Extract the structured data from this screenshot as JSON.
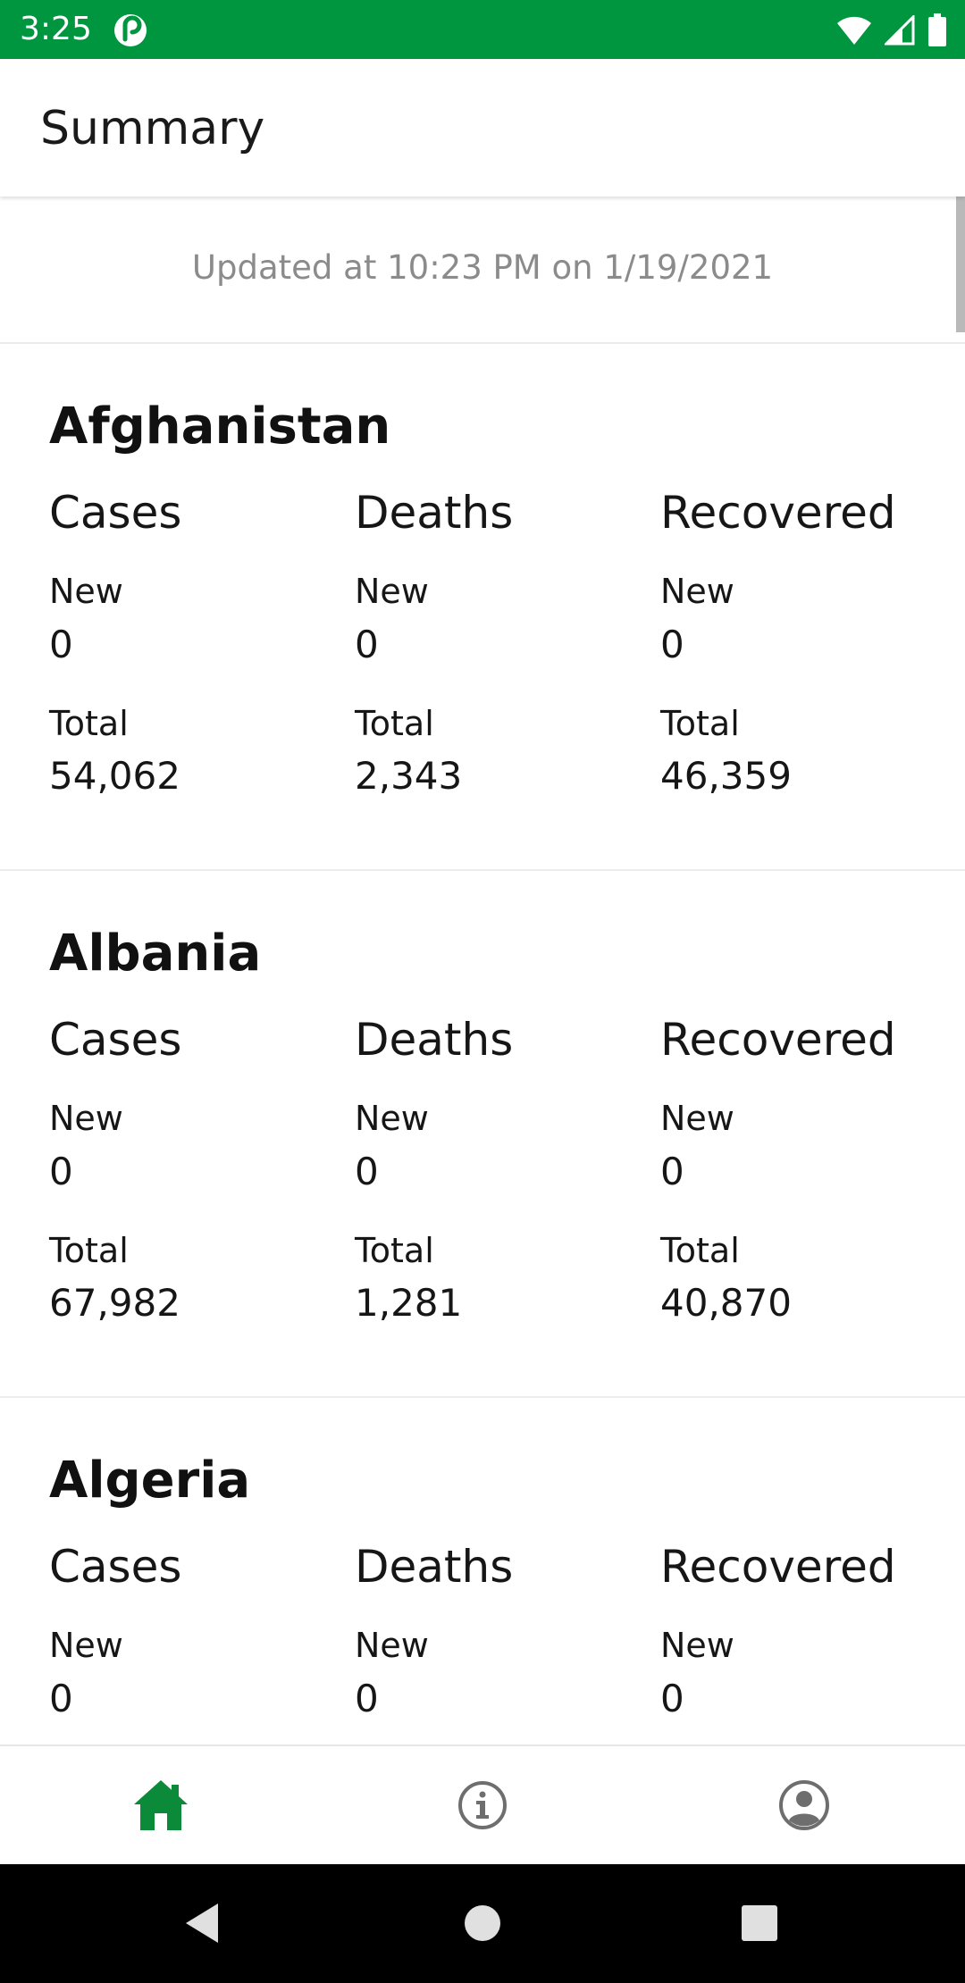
{
  "status_bar": {
    "time": "3:25",
    "app_icon": "pocket-casts-icon",
    "icons": [
      "wifi-icon",
      "cell-signal-icon",
      "battery-icon"
    ],
    "background_color": "#00963f"
  },
  "app_bar": {
    "title": "Summary"
  },
  "updated": {
    "text": "Updated at 10:23 PM on 1/19/2021"
  },
  "columns": {
    "cases": "Cases",
    "deaths": "Deaths",
    "recovered": "Recovered",
    "new": "New",
    "total": "Total"
  },
  "countries": [
    {
      "name": "Afghanistan",
      "cases": {
        "new": "0",
        "total": "54,062"
      },
      "deaths": {
        "new": "0",
        "total": "2,343"
      },
      "recovered": {
        "new": "0",
        "total": "46,359"
      }
    },
    {
      "name": "Albania",
      "cases": {
        "new": "0",
        "total": "67,982"
      },
      "deaths": {
        "new": "0",
        "total": "1,281"
      },
      "recovered": {
        "new": "0",
        "total": "40,870"
      }
    },
    {
      "name": "Algeria",
      "cases": {
        "new": "0",
        "total": ""
      },
      "deaths": {
        "new": "0",
        "total": ""
      },
      "recovered": {
        "new": "0",
        "total": ""
      }
    }
  ],
  "bottom_nav": {
    "items": [
      {
        "icon": "home-icon",
        "active": true
      },
      {
        "icon": "info-icon",
        "active": false
      },
      {
        "icon": "account-icon",
        "active": false
      }
    ],
    "active_color": "#0b8b3a",
    "inactive_color": "#6e6e6e"
  },
  "system_nav": {
    "icons": [
      "back-icon",
      "home-circle-icon",
      "recents-icon"
    ]
  }
}
